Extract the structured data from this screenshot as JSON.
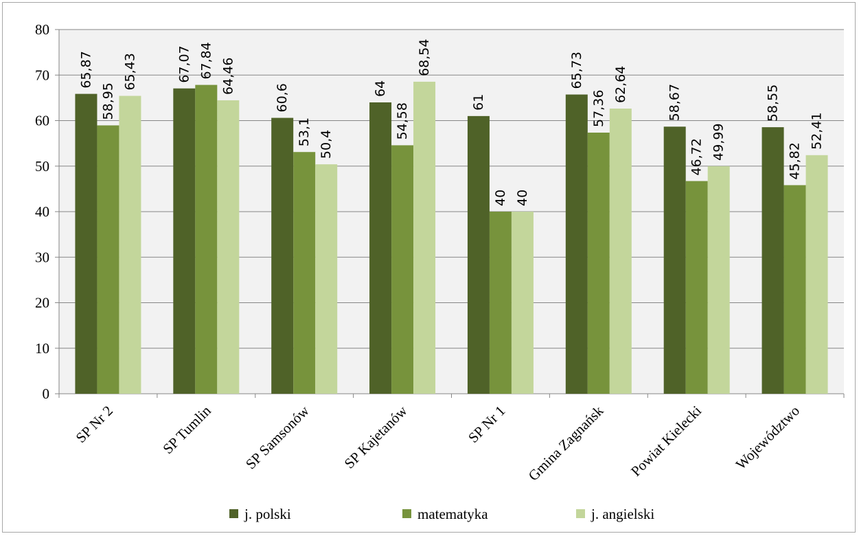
{
  "chart_data": {
    "type": "bar",
    "categories": [
      "SP Nr 2",
      "SP Tumlin",
      "SP Samsonów",
      "SP Kajetanów",
      "SP Nr 1",
      "Gmina Zagnańsk",
      "Powiat Kielecki",
      "Województwo"
    ],
    "series": [
      {
        "name": "j. polski",
        "color": "#4f6228",
        "values": [
          65.87,
          67.07,
          60.6,
          64,
          61,
          65.73,
          58.67,
          58.55
        ],
        "labels": [
          "65,87",
          "67,07",
          "60,6",
          "64",
          "61",
          "65,73",
          "58,67",
          "58,55"
        ]
      },
      {
        "name": "matematyka",
        "color": "#77933c",
        "values": [
          58.95,
          67.84,
          53.1,
          54.58,
          40,
          57.36,
          46.72,
          45.82
        ],
        "labels": [
          "58,95",
          "67,84",
          "53,1",
          "54,58",
          "40",
          "57,36",
          "46,72",
          "45,82"
        ]
      },
      {
        "name": "j. angielski",
        "color": "#c3d69b",
        "values": [
          65.43,
          64.46,
          50.4,
          68.54,
          40,
          62.64,
          49.99,
          52.41
        ],
        "labels": [
          "65,43",
          "64,46",
          "50,4",
          "68,54",
          "40",
          "62,64",
          "49,99",
          "52,41"
        ]
      }
    ],
    "ylim": [
      0,
      80
    ],
    "yticks": [
      0,
      10,
      20,
      30,
      40,
      50,
      60,
      70,
      80
    ],
    "grid": true,
    "legend": "bottom",
    "plot_background": "#f2f2f2",
    "gridline_color": "#868686",
    "title": "",
    "xlabel": "",
    "ylabel": ""
  }
}
